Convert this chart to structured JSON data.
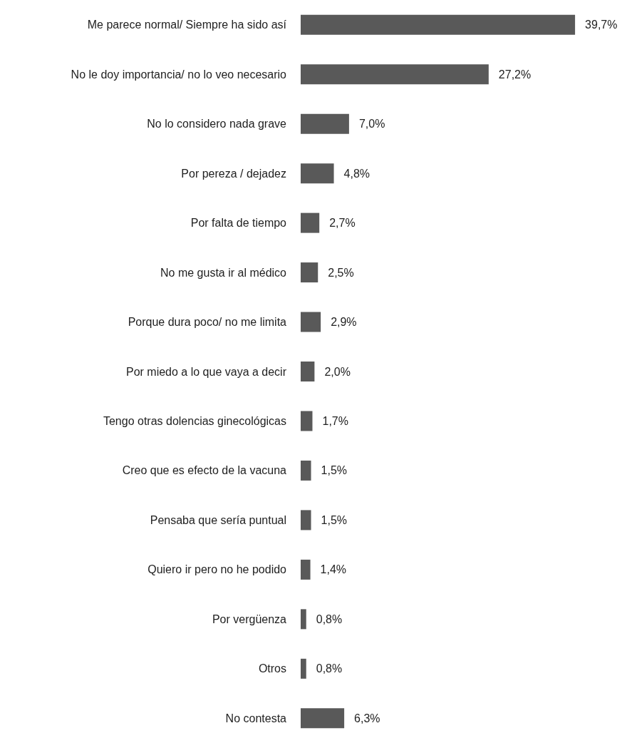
{
  "chart_data": {
    "type": "bar",
    "orientation": "horizontal",
    "categories": [
      "Me parece normal/ Siempre ha sido así",
      "No le doy importancia/ no lo veo necesario",
      "No lo considero nada grave",
      "Por pereza / dejadez",
      "Por falta de tiempo",
      "No me gusta ir al médico",
      "Porque dura poco/ no me limita",
      "Por miedo a lo que vaya a decir",
      "Tengo otras dolencias ginecológicas",
      "Creo que es efecto de la vacuna",
      "Pensaba que sería puntual",
      "Quiero ir pero no he podido",
      "Por vergüenza",
      "Otros",
      "No contesta"
    ],
    "values": [
      39.7,
      27.2,
      7.0,
      4.8,
      2.7,
      2.5,
      2.9,
      2.0,
      1.7,
      1.5,
      1.5,
      1.4,
      0.8,
      0.8,
      6.3
    ],
    "value_labels": [
      "39,7%",
      "27,2%",
      "7,0%",
      "4,8%",
      "2,7%",
      "2,5%",
      "2,9%",
      "2,0%",
      "1,7%",
      "1,5%",
      "1,5%",
      "1,4%",
      "0,8%",
      "0,8%",
      "6,3%"
    ],
    "color": "#595959"
  }
}
